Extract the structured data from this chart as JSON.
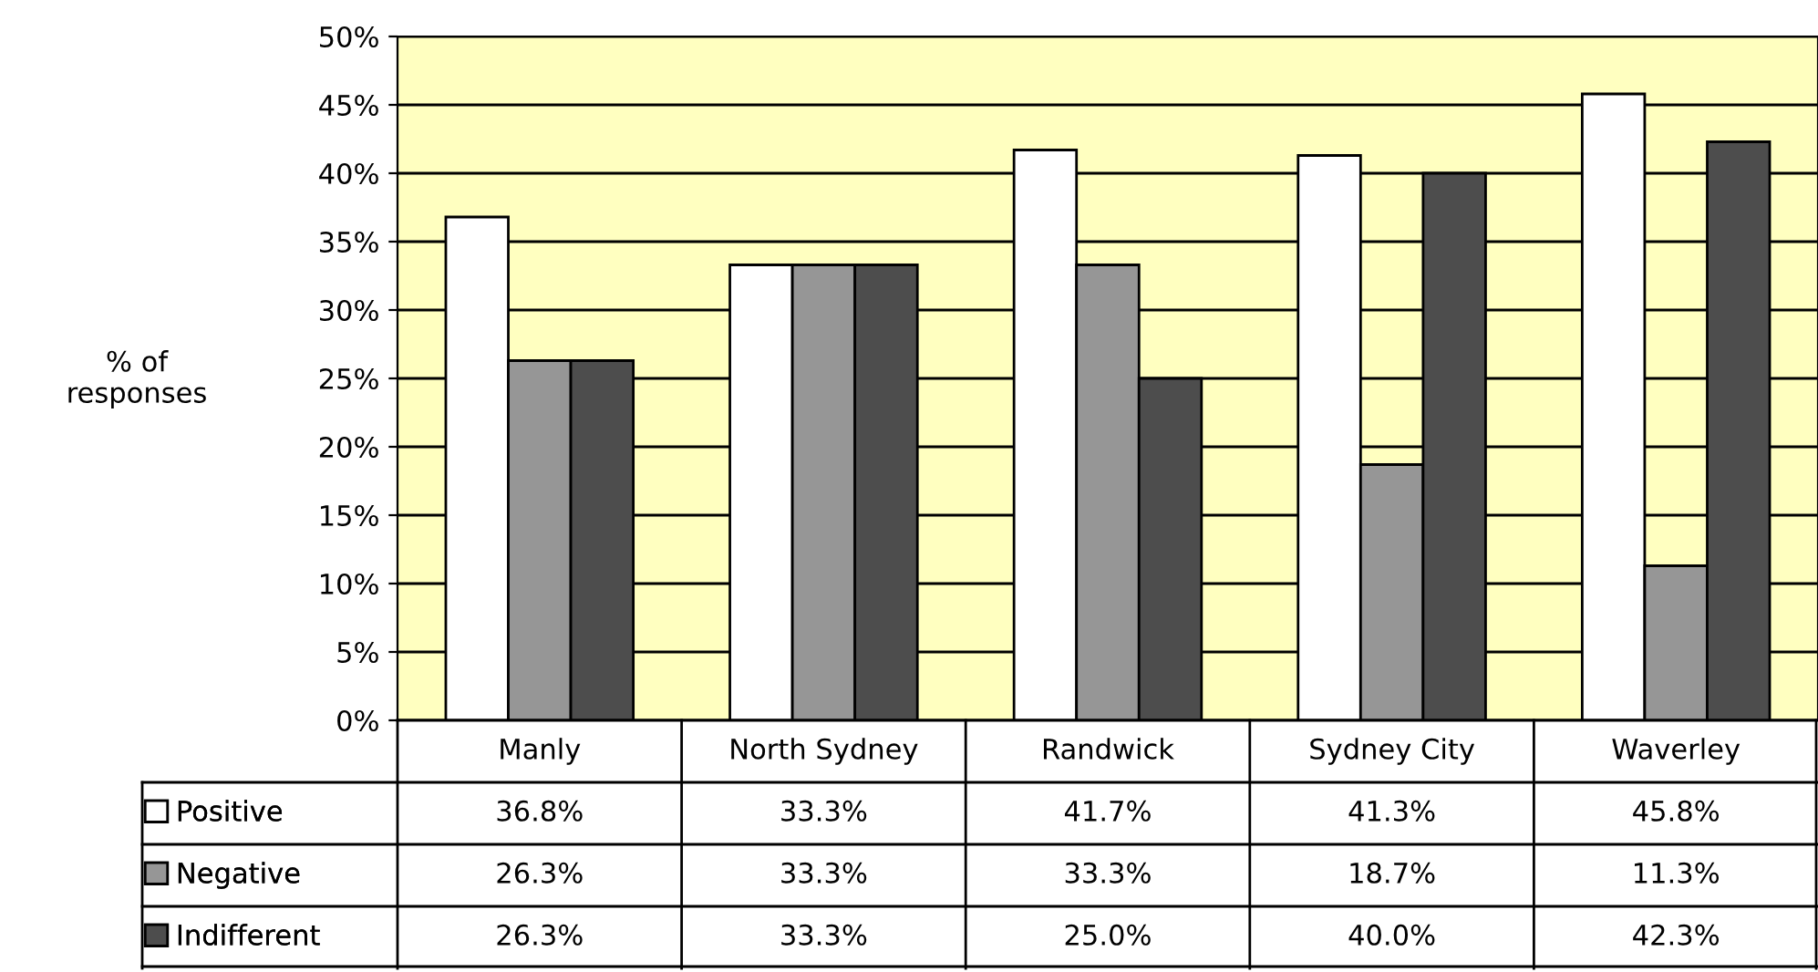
{
  "chart_data": {
    "type": "bar",
    "ylabel": "% of\nresponses",
    "categories": [
      "Manly",
      "North Sydney",
      "Randwick",
      "Sydney City",
      "Waverley"
    ],
    "series": [
      {
        "name": "Positive",
        "color": "#ffffff",
        "values": [
          36.8,
          33.3,
          41.7,
          41.3,
          45.8
        ],
        "value_labels": [
          "36.8%",
          "33.3%",
          "41.7%",
          "41.3%",
          "45.8%"
        ]
      },
      {
        "name": "Negative",
        "color": "#969696",
        "values": [
          26.3,
          33.3,
          33.3,
          18.7,
          11.3
        ],
        "value_labels": [
          "26.3%",
          "33.3%",
          "33.3%",
          "18.7%",
          "11.3%"
        ]
      },
      {
        "name": "Indifferent",
        "color": "#4d4d4d",
        "values": [
          26.3,
          33.3,
          25.0,
          40.0,
          42.3
        ],
        "value_labels": [
          "26.3%",
          "33.3%",
          "25.0%",
          "40.0%",
          "42.3%"
        ]
      }
    ],
    "ylim": [
      0,
      50
    ],
    "yticks": [
      {
        "value": 0,
        "label": "0%"
      },
      {
        "value": 5,
        "label": "5%"
      },
      {
        "value": 10,
        "label": "10%"
      },
      {
        "value": 15,
        "label": "15%"
      },
      {
        "value": 20,
        "label": "20%"
      },
      {
        "value": 25,
        "label": "25%"
      },
      {
        "value": 30,
        "label": "30%"
      },
      {
        "value": 35,
        "label": "35%"
      },
      {
        "value": 40,
        "label": "40%"
      },
      {
        "value": 45,
        "label": "45%"
      },
      {
        "value": 50,
        "label": "50%"
      }
    ],
    "grid": "y",
    "legend": "bottom"
  }
}
